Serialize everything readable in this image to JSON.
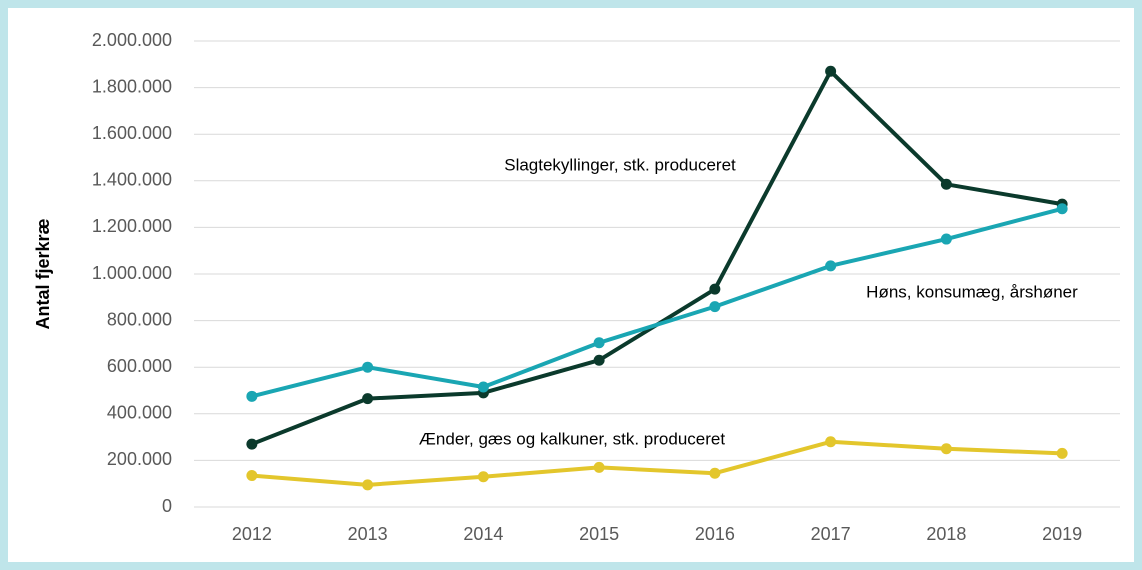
{
  "chart_data": {
    "type": "line",
    "y_label": "Antal fjerkræ",
    "categories": [
      "2012",
      "2013",
      "2014",
      "2015",
      "2016",
      "2017",
      "2018",
      "2019"
    ],
    "series": [
      {
        "name": "Slagtekyllinger, stk. produceret",
        "color": "#0b3a2c",
        "values": [
          270000,
          465000,
          490000,
          630000,
          935000,
          1870000,
          1385000,
          1300000
        ]
      },
      {
        "name": "Høns, konsumæg, årshøner",
        "color": "#1aa6b3",
        "values": [
          475000,
          600000,
          515000,
          705000,
          860000,
          1035000,
          1150000,
          1280000
        ]
      },
      {
        "name": "Ænder, gæs og kalkuner, stk. produceret",
        "color": "#e3c62c",
        "values": [
          135000,
          95000,
          130000,
          170000,
          145000,
          280000,
          250000,
          230000
        ]
      }
    ],
    "ylim": [
      0,
      2000000
    ],
    "yticks": [
      0,
      {
        "value": 200000,
        "label": "200.000"
      },
      {
        "value": 400000,
        "label": "400.000"
      },
      {
        "value": 600000,
        "label": "600.000"
      },
      {
        "value": 800000,
        "label": "800.000"
      },
      {
        "value": 1000000,
        "label": "1.000.000"
      },
      {
        "value": 1200000,
        "label": "1.200.000"
      },
      {
        "value": 1400000,
        "label": "1.400.000"
      },
      {
        "value": 1600000,
        "label": "1.600.000"
      },
      {
        "value": 1800000,
        "label": "1.800.000"
      },
      {
        "value": 2000000,
        "label": "2.000.000"
      }
    ],
    "grid": true
  }
}
